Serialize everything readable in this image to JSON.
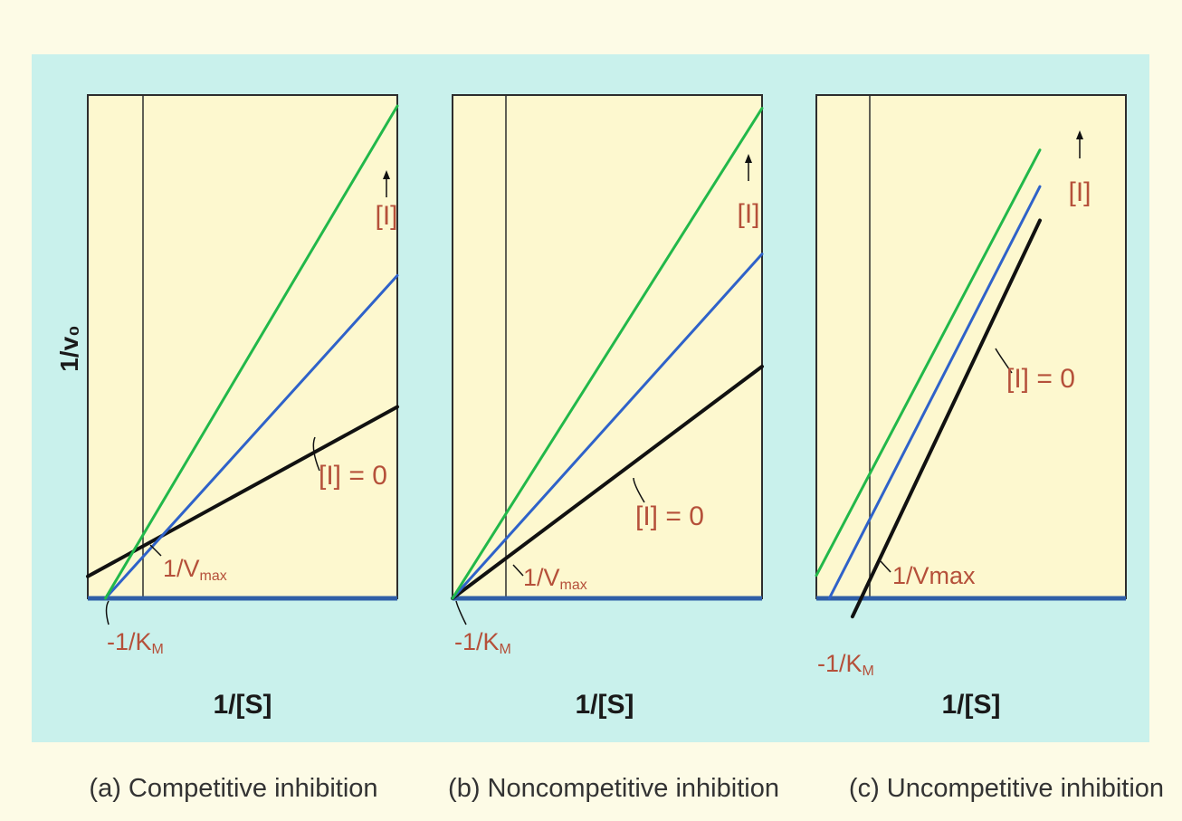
{
  "figure": {
    "y_axis_label": "1/v₀",
    "colors": {
      "panel_bg": "#fdf8cf",
      "outer_bg": "#c9f1ec",
      "frame": "#2d2d2d",
      "x_axis": "#2f5fa7",
      "annotation": "#b5503a",
      "line_i0": "#111111",
      "line_i1": "#2f62c9",
      "line_i2": "#22b84a"
    }
  },
  "chart_data": [
    {
      "type": "line",
      "caption": "(a) Competitive inhibition",
      "xlabel": "1/[S]",
      "ylabel": "1/v₀",
      "xlim": [
        -0.6,
        2.9
      ],
      "ylim": [
        0,
        4.6
      ],
      "series": [
        {
          "name": "[I] = 0",
          "color": "#111111",
          "x": [
            -0.6,
            2.9
          ],
          "y": [
            0.2,
            1.75
          ]
        },
        {
          "name": "",
          "color": "#2f62c9",
          "x": [
            -0.4,
            2.9
          ],
          "y": [
            0,
            2.95
          ]
        },
        {
          "name": "",
          "color": "#22b84a",
          "x": [
            -0.4,
            2.9
          ],
          "y": [
            0,
            4.5
          ]
        }
      ],
      "annotations": {
        "arrow_label": "[I]",
        "i0_label": "[I] = 0",
        "intercept_label": "1/V",
        "intercept_sub": "max",
        "km_label": "-1/K",
        "km_sub": "M"
      }
    },
    {
      "type": "line",
      "caption": "(b) Noncompetitive inhibition",
      "xlabel": "1/[S]",
      "ylabel": "1/v₀",
      "xlim": [
        -0.4,
        2.3
      ],
      "ylim": [
        0,
        3.8
      ],
      "series": [
        {
          "name": "[I] = 0",
          "color": "#111111",
          "x": [
            -0.4,
            2.3
          ],
          "y": [
            0,
            1.75
          ]
        },
        {
          "name": "",
          "color": "#2f62c9",
          "x": [
            -0.4,
            2.3
          ],
          "y": [
            0,
            2.6
          ]
        },
        {
          "name": "",
          "color": "#22b84a",
          "x": [
            -0.4,
            2.3
          ],
          "y": [
            0,
            3.7
          ]
        }
      ],
      "annotations": {
        "arrow_label": "[I]",
        "i0_label": "[I] = 0",
        "intercept_label": "1/V",
        "intercept_sub": "max",
        "km_label": "-1/K",
        "km_sub": "M"
      }
    },
    {
      "type": "line",
      "caption": "(c) Uncompetitive inhibition",
      "xlabel": "1/[S]",
      "ylabel": "1/v₀",
      "xlim": [
        -0.6,
        3.0
      ],
      "ylim": [
        0,
        5.5
      ],
      "series": [
        {
          "name": "[I] = 0",
          "color": "#111111",
          "x": [
            -0.18,
            2.0
          ],
          "y": [
            -0.2,
            4.13
          ]
        },
        {
          "name": "",
          "color": "#2f62c9",
          "x": [
            -0.45,
            2.0
          ],
          "y": [
            0,
            4.5
          ]
        },
        {
          "name": "",
          "color": "#22b84a",
          "x": [
            -0.6,
            2.0
          ],
          "y": [
            0.25,
            4.9
          ]
        }
      ],
      "annotations": {
        "arrow_label": "[I]",
        "i0_label": "[I] = 0",
        "intercept_label": "1/Vmax",
        "intercept_sub": "",
        "km_label": "-1/K",
        "km_sub": "M"
      }
    }
  ]
}
